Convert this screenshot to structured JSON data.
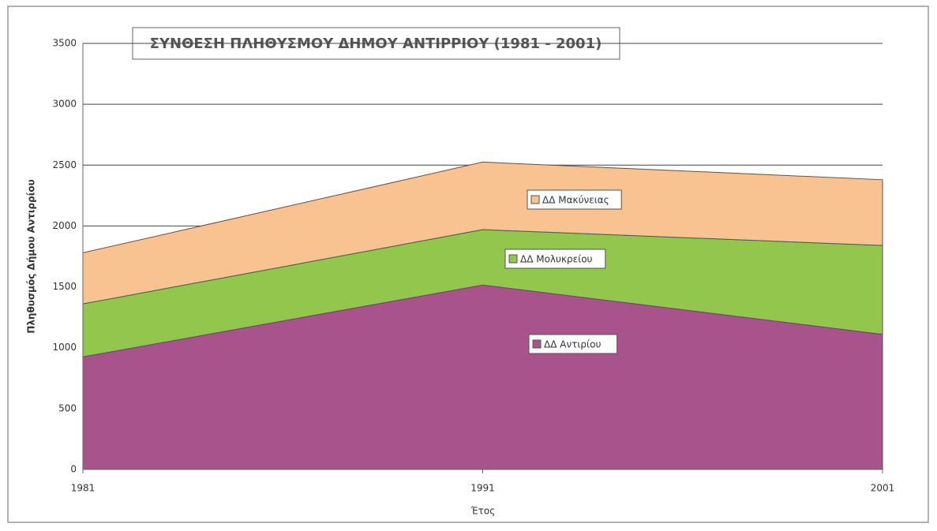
{
  "chart_data": {
    "type": "stacked-area",
    "title": "ΣΥΝΘΕΣΗ ΠΛΗΘΥΣΜΟΥ ΔΗΜΟΥ ΑΝΤΙΡΡΙΟΥ (1981 - 2001)",
    "x_label": "Έτος",
    "y_label": "Πληθυσμός Δήμου Αντιρρίου",
    "x": [
      1981,
      1991,
      2001
    ],
    "xlim": [
      1981,
      2001
    ],
    "xticks": [
      1981,
      1991,
      2001
    ],
    "ylim": [
      0,
      3500
    ],
    "yticks": [
      0,
      500,
      1000,
      1500,
      2000,
      2500,
      3000,
      3500
    ],
    "grid": true,
    "series": [
      {
        "name": "ΔΔ Αντιρίου",
        "color": "#a8538c",
        "values": [
          925,
          1515,
          1110
        ]
      },
      {
        "name": "ΔΔ Μολυκρείου",
        "color": "#92c64c",
        "values": [
          435,
          455,
          730
        ]
      },
      {
        "name": "ΔΔ Μακύνειας",
        "color": "#f8c291",
        "values": [
          420,
          555,
          540
        ]
      }
    ]
  }
}
